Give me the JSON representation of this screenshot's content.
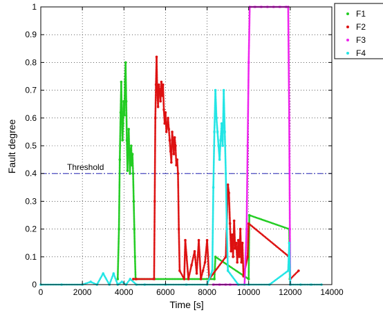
{
  "chart_data": {
    "type": "scatter",
    "xlabel": "Time [s]",
    "ylabel": "Fault degree",
    "xlim": [
      0,
      14000
    ],
    "ylim": [
      0,
      1
    ],
    "x_ticks": [
      "0",
      "2000",
      "4000",
      "6000",
      "8000",
      "10000",
      "12000",
      "14000"
    ],
    "y_ticks": [
      "0",
      "0.1",
      "0.2",
      "0.3",
      "0.4",
      "0.5",
      "0.6",
      "0.7",
      "0.8",
      "0.9",
      "1"
    ],
    "grid": "dotted",
    "legend_position": "top-right",
    "threshold": {
      "label": "Threshold",
      "value": 0.4,
      "color": "#1f1fb4"
    },
    "series": [
      {
        "name": "F1",
        "color": "#22cc22",
        "points": [
          [
            3700,
            0.02
          ],
          [
            3760,
            0.2
          ],
          [
            3800,
            0.45
          ],
          [
            3840,
            0.62
          ],
          [
            3870,
            0.73
          ],
          [
            3900,
            0.6
          ],
          [
            3930,
            0.52
          ],
          [
            3960,
            0.58
          ],
          [
            3990,
            0.66
          ],
          [
            4020,
            0.61
          ],
          [
            4050,
            0.73
          ],
          [
            4080,
            0.8
          ],
          [
            4110,
            0.66
          ],
          [
            4140,
            0.52
          ],
          [
            4170,
            0.41
          ],
          [
            4200,
            0.5
          ],
          [
            4230,
            0.56
          ],
          [
            4260,
            0.47
          ],
          [
            4290,
            0.4
          ],
          [
            4320,
            0.49
          ],
          [
            4350,
            0.5
          ],
          [
            4380,
            0.43
          ],
          [
            4410,
            0.47
          ],
          [
            4440,
            0.4
          ],
          [
            4470,
            0.3
          ],
          [
            4500,
            0.2
          ],
          [
            4530,
            0.1
          ],
          [
            4560,
            0.02
          ],
          [
            8350,
            0.02
          ],
          [
            8400,
            0.1
          ],
          [
            10000,
            0.02
          ],
          [
            10030,
            0.25
          ],
          [
            11950,
            0.2
          ],
          [
            11980,
            0.02
          ]
        ]
      },
      {
        "name": "F2",
        "color": "#dd1111",
        "points": [
          [
            4450,
            0.02
          ],
          [
            4600,
            0.02
          ],
          [
            5450,
            0.02
          ],
          [
            5480,
            0.3
          ],
          [
            5510,
            0.6
          ],
          [
            5540,
            0.72
          ],
          [
            5570,
            0.82
          ],
          [
            5600,
            0.7
          ],
          [
            5640,
            0.64
          ],
          [
            5680,
            0.72
          ],
          [
            5720,
            0.7
          ],
          [
            5760,
            0.66
          ],
          [
            5800,
            0.73
          ],
          [
            5840,
            0.68
          ],
          [
            5880,
            0.72
          ],
          [
            5920,
            0.63
          ],
          [
            5960,
            0.58
          ],
          [
            6000,
            0.62
          ],
          [
            6040,
            0.55
          ],
          [
            6080,
            0.57
          ],
          [
            6120,
            0.6
          ],
          [
            6160,
            0.56
          ],
          [
            6200,
            0.52
          ],
          [
            6240,
            0.48
          ],
          [
            6280,
            0.44
          ],
          [
            6320,
            0.55
          ],
          [
            6360,
            0.52
          ],
          [
            6400,
            0.47
          ],
          [
            6440,
            0.53
          ],
          [
            6480,
            0.5
          ],
          [
            6520,
            0.43
          ],
          [
            6560,
            0.45
          ],
          [
            6600,
            0.4
          ],
          [
            6640,
            0.2
          ],
          [
            6680,
            0.05
          ],
          [
            6900,
            0.02
          ],
          [
            6950,
            0.16
          ],
          [
            7100,
            0.02
          ],
          [
            7250,
            0.07
          ],
          [
            7400,
            0.12
          ],
          [
            7500,
            0.04
          ],
          [
            7600,
            0.16
          ],
          [
            7700,
            0.02
          ],
          [
            7800,
            0.05
          ],
          [
            7900,
            0.08
          ],
          [
            8000,
            0.16
          ],
          [
            8100,
            0.02
          ],
          [
            8900,
            0.1
          ],
          [
            9000,
            0.36
          ],
          [
            9050,
            0.33
          ],
          [
            9100,
            0.22
          ],
          [
            9150,
            0.12
          ],
          [
            9200,
            0.18
          ],
          [
            9250,
            0.1
          ],
          [
            9300,
            0.23
          ],
          [
            9350,
            0.13
          ],
          [
            9400,
            0.15
          ],
          [
            9450,
            0.08
          ],
          [
            9500,
            0.16
          ],
          [
            9550,
            0.1
          ],
          [
            9600,
            0.2
          ],
          [
            9650,
            0.08
          ],
          [
            9700,
            0.15
          ],
          [
            9750,
            0.03
          ],
          [
            9950,
            0.1
          ],
          [
            10000,
            0.22
          ],
          [
            11950,
            0.1
          ],
          [
            12000,
            0.02
          ],
          [
            12400,
            0.05
          ]
        ]
      },
      {
        "name": "F3",
        "color": "#ee22ee",
        "points": [
          [
            8300,
            0.0
          ],
          [
            8600,
            0.0
          ],
          [
            8900,
            0.0
          ],
          [
            9100,
            0.0
          ],
          [
            9500,
            0.0
          ],
          [
            9800,
            0.0
          ],
          [
            9900,
            0.2
          ],
          [
            9950,
            0.5
          ],
          [
            10000,
            0.8
          ],
          [
            10050,
            1.0
          ],
          [
            10300,
            1.0
          ],
          [
            10600,
            1.0
          ],
          [
            10900,
            1.0
          ],
          [
            11200,
            1.0
          ],
          [
            11500,
            1.0
          ],
          [
            11800,
            1.0
          ],
          [
            11900,
            1.0
          ],
          [
            11950,
            0.6
          ],
          [
            11980,
            0.2
          ],
          [
            12000,
            0.0
          ]
        ]
      },
      {
        "name": "F4",
        "color": "#22e5e5",
        "points": [
          [
            0,
            0.0
          ],
          [
            1000,
            0.0
          ],
          [
            2000,
            0.0
          ],
          [
            2400,
            0.01
          ],
          [
            2700,
            0.0
          ],
          [
            3000,
            0.04
          ],
          [
            3300,
            0.0
          ],
          [
            3500,
            0.04
          ],
          [
            3700,
            0.0
          ],
          [
            3900,
            0.01
          ],
          [
            4100,
            0.0
          ],
          [
            4300,
            0.02
          ],
          [
            4600,
            0.0
          ],
          [
            5000,
            0.0
          ],
          [
            6000,
            0.0
          ],
          [
            7000,
            0.0
          ],
          [
            8000,
            0.0
          ],
          [
            8250,
            0.05
          ],
          [
            8300,
            0.35
          ],
          [
            8350,
            0.55
          ],
          [
            8400,
            0.7
          ],
          [
            8450,
            0.6
          ],
          [
            8500,
            0.55
          ],
          [
            8550,
            0.5
          ],
          [
            8600,
            0.45
          ],
          [
            8650,
            0.52
          ],
          [
            8700,
            0.58
          ],
          [
            8750,
            0.5
          ],
          [
            8800,
            0.7
          ],
          [
            8850,
            0.55
          ],
          [
            8900,
            0.4
          ],
          [
            8950,
            0.2
          ],
          [
            9000,
            0.05
          ],
          [
            9500,
            0.0
          ],
          [
            10000,
            0.0
          ],
          [
            11000,
            0.0
          ],
          [
            11900,
            0.05
          ],
          [
            11950,
            0.15
          ],
          [
            12000,
            0.0
          ],
          [
            12500,
            0.0
          ],
          [
            13000,
            0.0
          ],
          [
            13500,
            0.0
          ]
        ]
      }
    ]
  }
}
